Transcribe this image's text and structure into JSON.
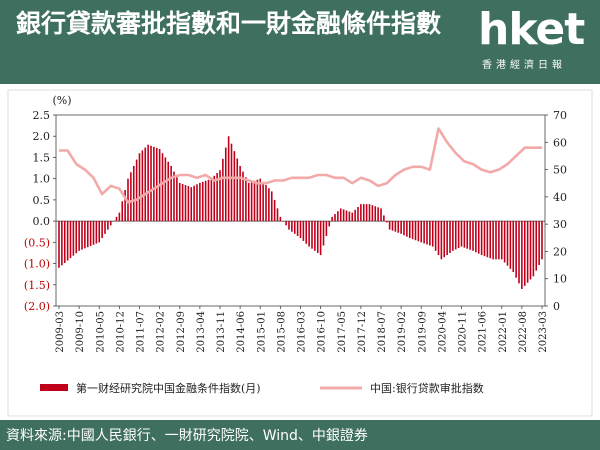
{
  "header": {
    "title": "銀行貸款審批指數和一財金融條件指數",
    "logo_text": "hket",
    "logo_sub": "香港經濟日報"
  },
  "footer": {
    "source": "資料來源:中國人民銀行、一財研究院院、Wind、中銀證券"
  },
  "colors": {
    "header_bg": "#3e6f5f",
    "bar": "#c0001a",
    "line": "#f2aaa8",
    "neg_label": "#c00000"
  },
  "chart_data": {
    "type": "bar+line",
    "left_unit": "(%)",
    "left_ylim": [
      -2.0,
      2.5
    ],
    "left_ticks": [
      "2.5",
      "2.0",
      "1.5",
      "1.0",
      "0.5",
      "0.0",
      "(0.5)",
      "(1.0)",
      "(1.5)",
      "(2.0)"
    ],
    "right_ylim": [
      0,
      70
    ],
    "right_ticks": [
      "70",
      "60",
      "50",
      "40",
      "30",
      "20",
      "10",
      "0"
    ],
    "x_start": "2009-03",
    "x_labels": [
      "2009-03",
      "2009-10",
      "2010-05",
      "2010-12",
      "2011-07",
      "2012-02",
      "2012-09",
      "2013-04",
      "2013-11",
      "2014-06",
      "2015-01",
      "2015-08",
      "2016-03",
      "2016-10",
      "2017-05",
      "2017-12",
      "2018-07",
      "2019-02",
      "2019-09",
      "2020-04",
      "2020-11",
      "2021-06",
      "2022-01",
      "2022-08",
      "2023-03"
    ],
    "series": [
      {
        "name": "第一财经研究院中国金融条件指数(月)",
        "kind": "bar",
        "axis": "left",
        "x": [
          "2009-03",
          "2009-10",
          "2010-05",
          "2010-12",
          "2011-03",
          "2011-07",
          "2011-10",
          "2012-02",
          "2012-06",
          "2012-09",
          "2013-01",
          "2013-04",
          "2013-08",
          "2013-11",
          "2014-02",
          "2014-06",
          "2014-09",
          "2015-01",
          "2015-05",
          "2015-08",
          "2015-11",
          "2016-03",
          "2016-06",
          "2016-10",
          "2017-02",
          "2017-05",
          "2017-09",
          "2017-12",
          "2018-03",
          "2018-07",
          "2018-10",
          "2019-02",
          "2019-05",
          "2019-09",
          "2020-01",
          "2020-04",
          "2020-08",
          "2020-11",
          "2021-03",
          "2021-06",
          "2021-10",
          "2022-01",
          "2022-05",
          "2022-08",
          "2022-12",
          "2023-03"
        ],
        "y": [
          -1.1,
          -0.7,
          -0.5,
          0.2,
          1.0,
          1.6,
          1.8,
          1.7,
          1.3,
          0.9,
          0.8,
          0.9,
          1.0,
          1.2,
          2.0,
          1.3,
          0.9,
          1.0,
          0.7,
          0.1,
          -0.2,
          -0.4,
          -0.6,
          -0.8,
          0.1,
          0.3,
          0.2,
          0.4,
          0.4,
          0.3,
          -0.2,
          -0.3,
          -0.4,
          -0.5,
          -0.6,
          -0.9,
          -0.7,
          -0.6,
          -0.7,
          -0.8,
          -0.9,
          -0.9,
          -1.2,
          -1.6,
          -1.3,
          -0.9
        ]
      },
      {
        "name": "中国:银行贷款审批指数",
        "kind": "line",
        "axis": "right",
        "x": [
          "2009-03",
          "2009-06",
          "2009-09",
          "2009-12",
          "2010-03",
          "2010-06",
          "2010-09",
          "2010-12",
          "2011-03",
          "2011-06",
          "2011-09",
          "2011-12",
          "2012-03",
          "2012-06",
          "2012-09",
          "2012-12",
          "2013-03",
          "2013-06",
          "2013-09",
          "2013-12",
          "2014-03",
          "2014-06",
          "2014-09",
          "2014-12",
          "2015-03",
          "2015-06",
          "2015-09",
          "2015-12",
          "2016-03",
          "2016-06",
          "2016-09",
          "2016-12",
          "2017-03",
          "2017-06",
          "2017-09",
          "2017-12",
          "2018-03",
          "2018-06",
          "2018-09",
          "2018-12",
          "2019-03",
          "2019-06",
          "2019-09",
          "2019-12",
          "2020-03",
          "2020-06",
          "2020-09",
          "2020-12",
          "2021-03",
          "2021-06",
          "2021-09",
          "2021-12",
          "2022-03",
          "2022-06",
          "2022-09",
          "2022-12",
          "2023-03"
        ],
        "y": [
          57,
          57,
          52,
          50,
          47,
          41,
          44,
          43,
          38,
          39,
          41,
          43,
          45,
          47,
          48,
          48,
          47,
          48,
          46,
          47,
          47,
          47,
          46,
          45,
          45,
          46,
          46,
          47,
          47,
          47,
          48,
          48,
          47,
          47,
          45,
          47,
          46,
          44,
          45,
          48,
          50,
          51,
          51,
          50,
          65,
          60,
          56,
          53,
          52,
          50,
          49,
          50,
          52,
          55,
          58,
          58,
          58
        ]
      }
    ]
  }
}
